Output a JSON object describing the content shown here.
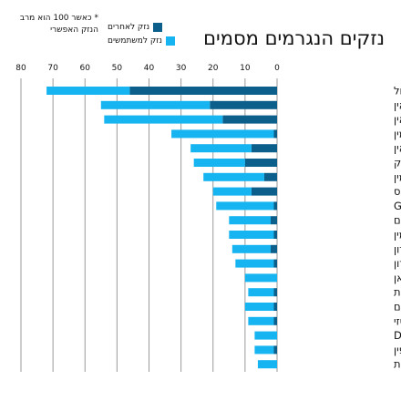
{
  "chart_data": {
    "type": "bar",
    "orientation": "horizontal",
    "stacked": true,
    "title": "נזקים הנגרמים מסמים",
    "note": "* כאשר 100 הוא מרב הנזק האפשרי",
    "xlim": [
      0,
      80
    ],
    "x_ticks": [
      "0",
      "10",
      "20",
      "30",
      "40",
      "50",
      "60",
      "70",
      "80"
    ],
    "x_direction": "right-to-left",
    "grid": true,
    "legend_position": "top-center",
    "categories": [
      "אלכוהול",
      "הרואין",
      "קראק קוקאין",
      "מתאמפטמין",
      "קוקאין",
      "טבק",
      "אמפטמין",
      "קנאביס",
      "GHB",
      "בנזודיאזפינים",
      "קטמין",
      "מתאדון",
      "מפדרון",
      "בוטאן",
      "קאת",
      "סטרואידים אנאבוליים",
      "אקסטזי",
      "DSL",
      "בופרנורפין",
      "פטריות"
    ],
    "series": [
      {
        "name": "נזק לאחרים",
        "color": "#0b5f8a",
        "values": [
          46,
          21,
          17,
          1,
          8,
          10,
          4,
          8,
          1,
          2,
          1,
          2,
          1,
          0,
          1,
          1,
          1,
          0,
          1,
          0
        ]
      },
      {
        "name": "נזק למשתמשים",
        "color": "#16b4f0",
        "values": [
          26,
          34,
          37,
          32,
          19,
          16,
          19,
          12,
          18,
          13,
          14,
          12,
          12,
          10,
          8,
          9,
          8,
          7,
          6,
          6
        ]
      }
    ]
  }
}
